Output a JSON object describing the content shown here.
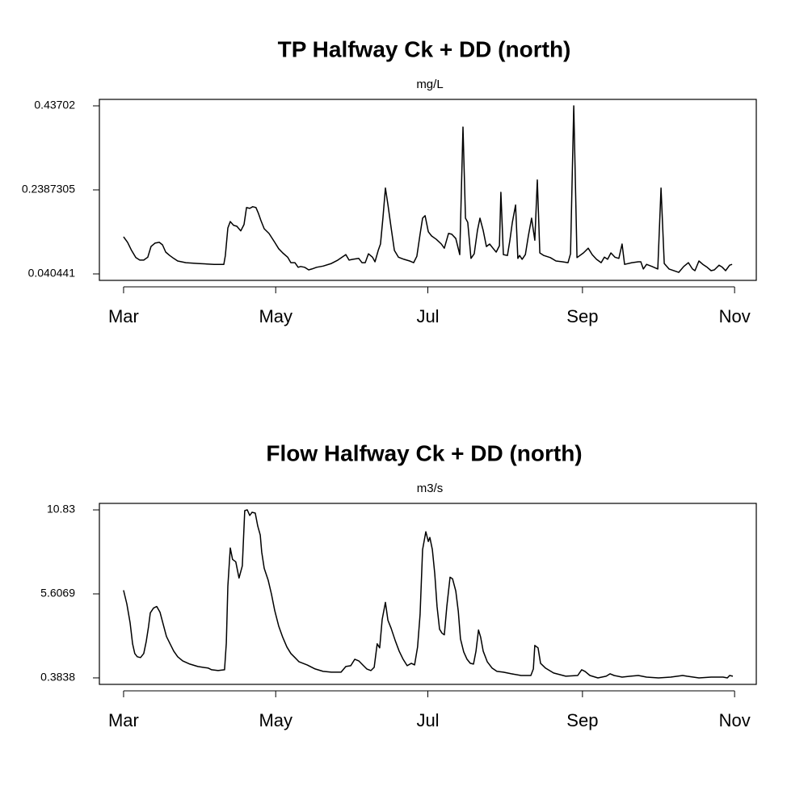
{
  "chart_data": [
    {
      "type": "line",
      "title": "TP Halfway Ck + DD (north)",
      "subtitle": "mg/L",
      "color": "#000000",
      "x": [
        0,
        1.6,
        3.2,
        4.9,
        6.5,
        8.1,
        9.7,
        11.0,
        12.6,
        14.3,
        15.6,
        16.9,
        18.5,
        20.1,
        21.7,
        25.0,
        29.8,
        36.3,
        40.2,
        40.8,
        41.8,
        42.8,
        44.1,
        45.4,
        47.0,
        48.3,
        49.3,
        50.6,
        51.8,
        53.1,
        54.1,
        55.1,
        56.4,
        58.3,
        60.6,
        62.2,
        63.8,
        65.8,
        67.1,
        68.7,
        70.0,
        71.0,
        72.6,
        74.2,
        75.5,
        77.4,
        80.0,
        83.3,
        85.9,
        89.1,
        90.4,
        92.0,
        94.3,
        95.6,
        96.9,
        98.2,
        99.8,
        100.8,
        102.1,
        103.0,
        104.0,
        105.0,
        106.0,
        107.3,
        108.6,
        110.2,
        112.4,
        114.7,
        116.3,
        117.6,
        118.9,
        119.9,
        120.9,
        122.2,
        123.5,
        125.4,
        127.4,
        128.6,
        130.3,
        131.6,
        133.2,
        134.8,
        136.1,
        137.1,
        138.0,
        139.3,
        140.6,
        141.9,
        142.9,
        144.2,
        145.5,
        146.8,
        148.1,
        149.4,
        150.7,
        151.3,
        152.3,
        153.9,
        154.9,
        155.9,
        157.2,
        158.1,
        158.8,
        159.8,
        161.1,
        162.3,
        163.6,
        164.9,
        165.9,
        166.9,
        168.5,
        171.1,
        173.4,
        176.0,
        178.2,
        179.2,
        180.5,
        181.8,
        184.4,
        186.3,
        187.9,
        189.6,
        191.5,
        192.8,
        194.1,
        195.4,
        197.0,
        198.6,
        199.9,
        200.9,
        203.8,
        206.4,
        207.4,
        208.4,
        209.7,
        211.9,
        214.2,
        215.5,
        216.8,
        218.7,
        222.6,
        224.6,
        226.5,
        228.1,
        229.1,
        230.7,
        232.3,
        234.0,
        235.6,
        236.9,
        238.8,
        240.1,
        241.4,
        243.0,
        244.0
      ],
      "values": [
        0.128,
        0.115,
        0.096,
        0.079,
        0.073,
        0.073,
        0.08,
        0.105,
        0.113,
        0.115,
        0.109,
        0.092,
        0.084,
        0.077,
        0.071,
        0.067,
        0.065,
        0.063,
        0.063,
        0.084,
        0.149,
        0.164,
        0.155,
        0.153,
        0.142,
        0.157,
        0.197,
        0.195,
        0.199,
        0.197,
        0.183,
        0.166,
        0.147,
        0.136,
        0.115,
        0.1,
        0.09,
        0.08,
        0.067,
        0.067,
        0.056,
        0.058,
        0.056,
        0.05,
        0.052,
        0.056,
        0.059,
        0.065,
        0.073,
        0.086,
        0.073,
        0.075,
        0.077,
        0.067,
        0.067,
        0.088,
        0.08,
        0.069,
        0.096,
        0.111,
        0.172,
        0.243,
        0.204,
        0.149,
        0.096,
        0.08,
        0.075,
        0.071,
        0.067,
        0.082,
        0.134,
        0.172,
        0.178,
        0.14,
        0.13,
        0.122,
        0.111,
        0.101,
        0.136,
        0.134,
        0.124,
        0.086,
        0.387,
        0.172,
        0.162,
        0.077,
        0.088,
        0.143,
        0.172,
        0.143,
        0.105,
        0.111,
        0.101,
        0.092,
        0.107,
        0.233,
        0.086,
        0.084,
        0.119,
        0.162,
        0.203,
        0.077,
        0.084,
        0.075,
        0.086,
        0.13,
        0.172,
        0.12,
        0.262,
        0.09,
        0.084,
        0.079,
        0.071,
        0.069,
        0.067,
        0.088,
        0.437,
        0.079,
        0.09,
        0.101,
        0.086,
        0.075,
        0.067,
        0.08,
        0.075,
        0.09,
        0.08,
        0.077,
        0.111,
        0.063,
        0.067,
        0.069,
        0.069,
        0.052,
        0.063,
        0.058,
        0.052,
        0.243,
        0.065,
        0.052,
        0.044,
        0.058,
        0.067,
        0.052,
        0.048,
        0.071,
        0.063,
        0.056,
        0.048,
        0.05,
        0.061,
        0.056,
        0.048,
        0.061,
        0.063
      ],
      "xlim": [
        -9.7,
        253.7
      ],
      "xticks": [
        {
          "value": 0,
          "label": "Mar"
        },
        {
          "value": 61,
          "label": "May"
        },
        {
          "value": 122,
          "label": "Jul"
        },
        {
          "value": 184,
          "label": "Sep"
        },
        {
          "value": 245,
          "label": "Nov"
        }
      ],
      "ylim": [
        0.02519,
        0.45227
      ],
      "yticks": [
        0.040441,
        0.2387305,
        0.43702
      ]
    },
    {
      "type": "line",
      "title": "Flow Halfway Ck + DD (north)",
      "subtitle": "m3/s",
      "color": "#000000",
      "x": [
        0,
        1.3,
        2.6,
        3.6,
        4.5,
        5.5,
        6.8,
        8.1,
        9.1,
        10.0,
        10.7,
        12.0,
        13.3,
        14.6,
        15.9,
        17.2,
        18.5,
        20.1,
        21.7,
        23.7,
        26.6,
        29.8,
        34.0,
        35.3,
        37.9,
        40.5,
        41.2,
        41.8,
        42.8,
        43.7,
        45.0,
        46.3,
        47.6,
        48.6,
        49.6,
        50.6,
        51.5,
        52.8,
        53.8,
        54.8,
        55.4,
        56.4,
        58.0,
        59.3,
        60.6,
        62.2,
        63.8,
        65.5,
        67.1,
        68.7,
        70.3,
        73.6,
        76.8,
        80.0,
        83.3,
        87.2,
        89.1,
        91.1,
        92.7,
        94.3,
        95.9,
        97.5,
        99.2,
        100.5,
        101.7,
        102.7,
        103.7,
        105.0,
        106.0,
        107.3,
        108.9,
        110.5,
        112.1,
        113.7,
        115.4,
        116.7,
        117.9,
        118.9,
        119.9,
        121.2,
        122.2,
        122.8,
        123.8,
        124.8,
        125.7,
        126.7,
        127.7,
        128.6,
        129.6,
        130.9,
        131.9,
        133.2,
        134.2,
        135.1,
        136.4,
        137.7,
        139.0,
        140.3,
        141.3,
        142.3,
        143.2,
        144.2,
        145.8,
        147.8,
        149.7,
        152.3,
        155.5,
        159.4,
        163.3,
        164.3,
        164.9,
        166.2,
        167.2,
        169.2,
        172.4,
        177.3,
        182.1,
        183.7,
        185.0,
        187.0,
        190.2,
        193.5,
        195.1,
        196.7,
        199.9,
        203.2,
        206.4,
        209.7,
        214.5,
        219.4,
        224.2,
        225.9,
        230.7,
        235.6,
        240.4,
        242.1,
        243.0,
        244.3
      ],
      "values": [
        5.835,
        4.977,
        3.816,
        2.504,
        1.898,
        1.696,
        1.646,
        1.898,
        2.655,
        3.564,
        4.422,
        4.724,
        4.825,
        4.472,
        3.715,
        2.958,
        2.554,
        2.049,
        1.696,
        1.444,
        1.242,
        1.091,
        0.99,
        0.889,
        0.838,
        0.889,
        2.554,
        6.087,
        8.459,
        7.753,
        7.601,
        6.592,
        7.349,
        10.781,
        10.831,
        10.478,
        10.68,
        10.629,
        9.822,
        9.267,
        8.207,
        7.197,
        6.44,
        5.582,
        4.573,
        3.614,
        2.908,
        2.302,
        1.898,
        1.646,
        1.393,
        1.191,
        0.939,
        0.788,
        0.737,
        0.737,
        1.091,
        1.141,
        1.545,
        1.444,
        1.191,
        0.939,
        0.838,
        1.04,
        2.504,
        2.251,
        4.018,
        5.078,
        3.967,
        3.463,
        2.706,
        2.049,
        1.545,
        1.141,
        1.292,
        1.191,
        2.302,
        4.321,
        8.358,
        9.469,
        8.863,
        9.115,
        8.358,
        6.844,
        4.825,
        3.412,
        3.16,
        3.059,
        4.825,
        6.642,
        6.541,
        5.784,
        4.522,
        2.807,
        1.999,
        1.545,
        1.292,
        1.242,
        2.049,
        3.362,
        2.908,
        2.049,
        1.393,
        0.99,
        0.788,
        0.737,
        0.636,
        0.535,
        0.535,
        0.939,
        2.403,
        2.251,
        1.292,
        0.99,
        0.687,
        0.485,
        0.535,
        0.889,
        0.788,
        0.535,
        0.384,
        0.485,
        0.636,
        0.535,
        0.434,
        0.485,
        0.535,
        0.434,
        0.384,
        0.434,
        0.535,
        0.485,
        0.384,
        0.434,
        0.434,
        0.384,
        0.535,
        0.485
      ],
      "xlim": [
        -9.7,
        253.7
      ],
      "xticks": [
        {
          "value": 0,
          "label": "Mar"
        },
        {
          "value": 61,
          "label": "May"
        },
        {
          "value": 122,
          "label": "Jul"
        },
        {
          "value": 184,
          "label": "Sep"
        },
        {
          "value": 245,
          "label": "Nov"
        }
      ],
      "ylim": [
        -0.02,
        11.234
      ],
      "yticks": [
        0.3838,
        5.6069,
        10.83
      ]
    }
  ]
}
